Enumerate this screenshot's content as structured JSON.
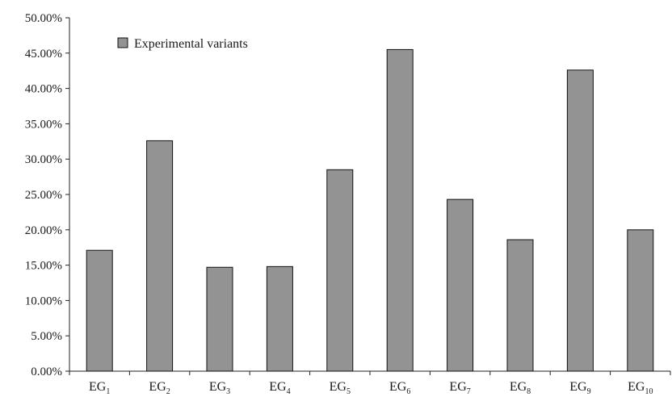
{
  "chart_data": {
    "type": "bar",
    "categories": [
      {
        "base": "EG",
        "sub": "1"
      },
      {
        "base": "EG",
        "sub": "2"
      },
      {
        "base": "EG",
        "sub": "3"
      },
      {
        "base": "EG",
        "sub": "4"
      },
      {
        "base": "EG",
        "sub": "5"
      },
      {
        "base": "EG",
        "sub": "6"
      },
      {
        "base": "EG",
        "sub": "7"
      },
      {
        "base": "EG",
        "sub": "8"
      },
      {
        "base": "EG",
        "sub": "9"
      },
      {
        "base": "EG",
        "sub": "10"
      }
    ],
    "series": [
      {
        "name": "Experimental variants",
        "color": "#939393",
        "values": [
          17.1,
          32.6,
          14.7,
          14.8,
          28.5,
          45.5,
          24.3,
          18.6,
          42.6,
          20.0
        ]
      }
    ],
    "yticks": [
      "0.00%",
      "5.00%",
      "10.00%",
      "15.00%",
      "20.00%",
      "25.00%",
      "30.00%",
      "35.00%",
      "40.00%",
      "45.00%",
      "50.00%"
    ],
    "ylim": [
      0,
      50
    ],
    "ytick_step": 5,
    "grid": false,
    "legend_position": "top-left"
  }
}
